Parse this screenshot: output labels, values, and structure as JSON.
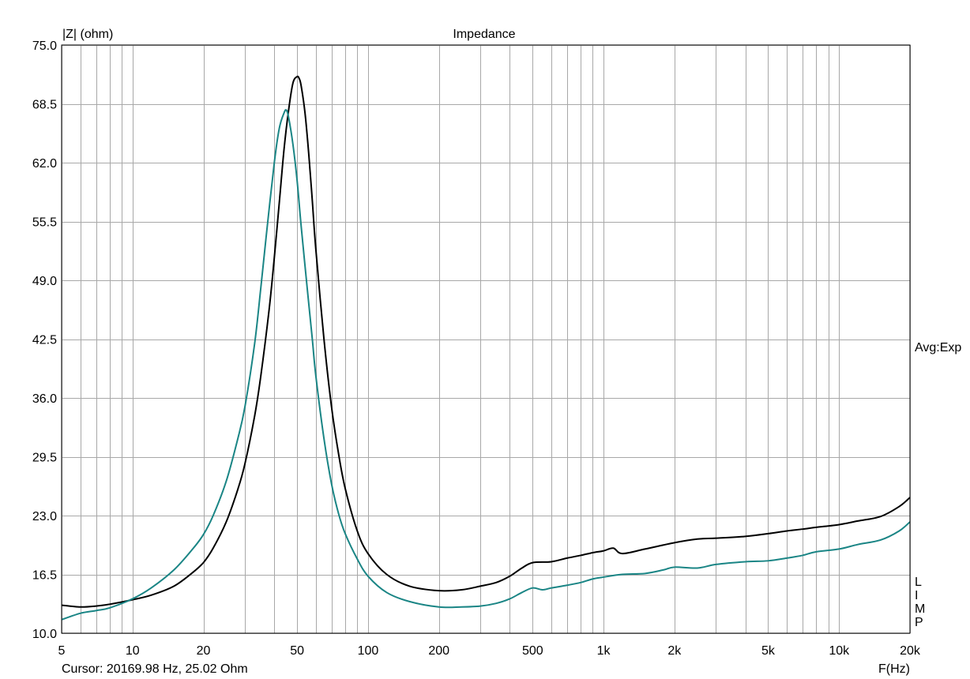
{
  "chart_data": {
    "type": "line",
    "title": "Impedance",
    "ylabel": "|Z| (ohm)",
    "xlabel": "F(Hz)",
    "xscale": "log",
    "xlim": [
      5,
      20000
    ],
    "ylim": [
      10.0,
      75.0
    ],
    "yticks": [
      "10.0",
      "16.5",
      "23.0",
      "29.5",
      "36.0",
      "42.5",
      "49.0",
      "55.5",
      "62.0",
      "68.5",
      "75.0"
    ],
    "xticks": [
      {
        "v": 5,
        "t": "5"
      },
      {
        "v": 10,
        "t": "10"
      },
      {
        "v": 20,
        "t": "20"
      },
      {
        "v": 50,
        "t": "50"
      },
      {
        "v": 100,
        "t": "100"
      },
      {
        "v": 200,
        "t": "200"
      },
      {
        "v": 500,
        "t": "500"
      },
      {
        "v": 1000,
        "t": "1k"
      },
      {
        "v": 2000,
        "t": "2k"
      },
      {
        "v": 5000,
        "t": "5k"
      },
      {
        "v": 10000,
        "t": "10k"
      },
      {
        "v": 20000,
        "t": "20k"
      }
    ],
    "grid": true,
    "series": [
      {
        "color": "#000000",
        "x": [
          5,
          6,
          7,
          8,
          10,
          12,
          15,
          18,
          20,
          22,
          25,
          28,
          30,
          33,
          35,
          38,
          40,
          42,
          44,
          46,
          48,
          50,
          51,
          52,
          54,
          56,
          58,
          60,
          65,
          70,
          75,
          80,
          90,
          100,
          120,
          150,
          200,
          250,
          300,
          350,
          400,
          450,
          500,
          600,
          700,
          800,
          900,
          1000,
          1100,
          1200,
          1500,
          2000,
          2500,
          3000,
          4000,
          5000,
          6000,
          7000,
          8000,
          10000,
          12000,
          15000,
          18000,
          20000
        ],
        "y": [
          13.1,
          12.9,
          13.0,
          13.2,
          13.7,
          14.2,
          15.2,
          16.7,
          17.8,
          19.4,
          22.3,
          25.9,
          28.7,
          34.0,
          38.3,
          45.7,
          51.5,
          57.6,
          63.5,
          67.8,
          70.8,
          71.5,
          71.3,
          70.5,
          67.5,
          63.0,
          57.8,
          52.5,
          42.5,
          35.0,
          29.8,
          26.0,
          21.3,
          18.8,
          16.5,
          15.2,
          14.7,
          14.8,
          15.2,
          15.6,
          16.3,
          17.2,
          17.8,
          17.9,
          18.3,
          18.6,
          18.9,
          19.1,
          19.4,
          18.8,
          19.3,
          20.0,
          20.4,
          20.5,
          20.7,
          21.0,
          21.3,
          21.5,
          21.7,
          22.0,
          22.4,
          22.9,
          24.0,
          25.0
        ]
      },
      {
        "color": "#1a8585",
        "x": [
          5,
          6,
          7,
          8,
          10,
          12,
          15,
          18,
          20,
          22,
          25,
          28,
          30,
          33,
          35,
          37,
          40,
          42,
          44,
          45,
          46,
          48,
          50,
          52,
          55,
          58,
          60,
          65,
          70,
          75,
          80,
          90,
          100,
          120,
          150,
          200,
          250,
          300,
          350,
          400,
          450,
          500,
          550,
          600,
          700,
          800,
          900,
          1000,
          1200,
          1500,
          1800,
          2000,
          2500,
          3000,
          4000,
          5000,
          6000,
          7000,
          8000,
          10000,
          12000,
          15000,
          18000,
          20000
        ],
        "y": [
          11.5,
          12.2,
          12.5,
          12.8,
          13.8,
          15.0,
          17.0,
          19.3,
          20.9,
          23.0,
          26.8,
          31.5,
          35.0,
          42.0,
          48.0,
          54.0,
          62.0,
          65.8,
          67.5,
          67.8,
          67.0,
          64.0,
          60.0,
          55.0,
          48.5,
          42.5,
          38.5,
          31.5,
          26.5,
          23.2,
          21.0,
          18.2,
          16.3,
          14.5,
          13.5,
          12.9,
          12.9,
          13.0,
          13.3,
          13.8,
          14.5,
          15.0,
          14.8,
          15.0,
          15.3,
          15.6,
          16.0,
          16.2,
          16.5,
          16.6,
          17.0,
          17.3,
          17.2,
          17.6,
          17.9,
          18.0,
          18.3,
          18.6,
          19.0,
          19.3,
          19.8,
          20.3,
          21.3,
          22.3
        ]
      }
    ]
  },
  "cursor_text": "Cursor: 20169.98 Hz, 25.02 Ohm",
  "side_label": "Avg:Exp",
  "limp_letters": [
    "L",
    "I",
    "M",
    "P"
  ]
}
